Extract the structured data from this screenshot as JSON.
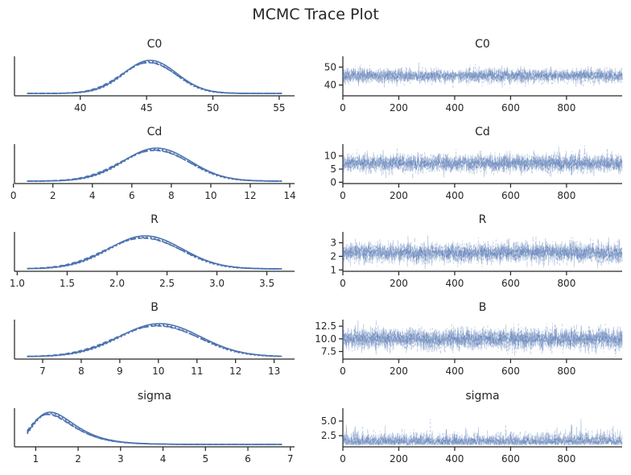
{
  "title": "MCMC Trace Plot",
  "colors": {
    "series": "#4c72b0",
    "axis": "#262626"
  },
  "chart_data": [
    {
      "type": "line",
      "panel": "density",
      "title": "C0",
      "mean": 45.2,
      "sd": 2.0,
      "chains": 4,
      "xlim": [
        36.0,
        55.2
      ],
      "xticks": [
        40,
        45,
        50,
        55
      ]
    },
    {
      "type": "line",
      "panel": "trace",
      "title": "C0",
      "mean": 45.2,
      "sd": 2.0,
      "chains": 4,
      "draws": 1000,
      "xlim": [
        0,
        999
      ],
      "ylim": [
        34,
        56
      ],
      "xticks": [
        0,
        200,
        400,
        600,
        800
      ],
      "yticks": [
        40,
        50
      ],
      "ytick_labels": [
        "40",
        "50"
      ]
    },
    {
      "type": "line",
      "panel": "density",
      "title": "Cd",
      "mean": 7.2,
      "sd": 1.7,
      "chains": 4,
      "xlim": [
        0.7,
        13.6
      ],
      "xticks": [
        0,
        2,
        4,
        6,
        8,
        10,
        12,
        14
      ]
    },
    {
      "type": "line",
      "panel": "trace",
      "title": "Cd",
      "mean": 7.2,
      "sd": 1.7,
      "chains": 4,
      "draws": 1000,
      "xlim": [
        0,
        999
      ],
      "ylim": [
        -0.5,
        14.5
      ],
      "xticks": [
        0,
        200,
        400,
        600,
        800
      ],
      "yticks": [
        0,
        5,
        10
      ],
      "ytick_labels": [
        "0",
        "5",
        "10"
      ]
    },
    {
      "type": "line",
      "panel": "density",
      "title": "R",
      "mean": 2.27,
      "sd": 0.37,
      "chains": 4,
      "xlim": [
        1.1,
        3.65
      ],
      "xticks": [
        1.0,
        1.5,
        2.0,
        2.5,
        3.0,
        3.5
      ],
      "xtick_labels": [
        "1.0",
        "1.5",
        "2.0",
        "2.5",
        "3.0",
        "3.5"
      ]
    },
    {
      "type": "line",
      "panel": "trace",
      "title": "R",
      "mean": 2.27,
      "sd": 0.37,
      "chains": 4,
      "draws": 1000,
      "xlim": [
        0,
        999
      ],
      "ylim": [
        0.9,
        3.8
      ],
      "xticks": [
        0,
        200,
        400,
        600,
        800
      ],
      "yticks": [
        1,
        2,
        3
      ],
      "ytick_labels": [
        "1",
        "2",
        "3"
      ]
    },
    {
      "type": "line",
      "panel": "density",
      "title": "B",
      "mean": 10.0,
      "sd": 1.05,
      "chains": 4,
      "xlim": [
        6.6,
        13.2
      ],
      "xticks": [
        7,
        8,
        9,
        10,
        11,
        12,
        13
      ]
    },
    {
      "type": "line",
      "panel": "trace",
      "title": "B",
      "mean": 10.0,
      "sd": 1.05,
      "chains": 4,
      "draws": 1000,
      "xlim": [
        0,
        999
      ],
      "ylim": [
        6.0,
        13.8
      ],
      "xticks": [
        0,
        200,
        400,
        600,
        800
      ],
      "yticks": [
        7.5,
        10.0,
        12.5
      ],
      "ytick_labels": [
        "7.5",
        "10.0",
        "12.5"
      ]
    },
    {
      "type": "line",
      "panel": "density",
      "title": "sigma",
      "mean": 1.5,
      "sd": 0.45,
      "skewed": true,
      "chains": 4,
      "xlim": [
        0.8,
        6.8
      ],
      "xticks": [
        1,
        2,
        3,
        4,
        5,
        6,
        7
      ]
    },
    {
      "type": "line",
      "panel": "trace",
      "title": "sigma",
      "mean": 1.5,
      "sd": 0.45,
      "skewed": true,
      "chains": 4,
      "draws": 1000,
      "xlim": [
        0,
        999
      ],
      "ylim": [
        0.6,
        7.2
      ],
      "xticks": [
        0,
        200,
        400,
        600,
        800
      ],
      "yticks": [
        2.5,
        5.0
      ],
      "ytick_labels": [
        "2.5",
        "5.0"
      ]
    }
  ]
}
